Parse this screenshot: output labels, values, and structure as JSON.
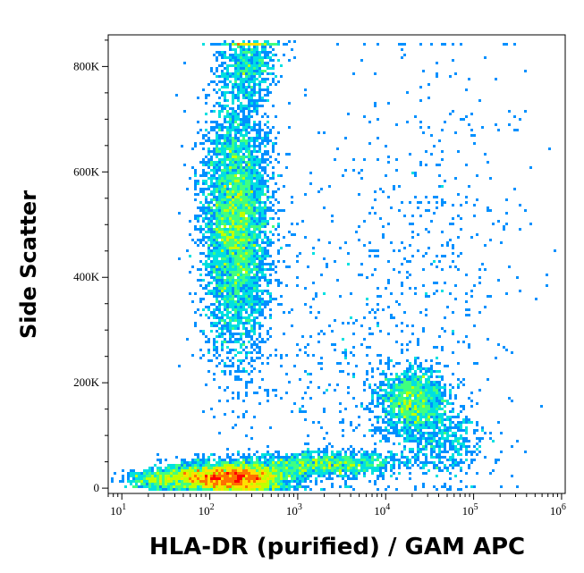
{
  "chart_data": {
    "type": "scatter",
    "subtype": "flow-cytometry-density-plot",
    "xlabel": "HLA-DR (purified) / GAM APC",
    "ylabel": "Side Scatter",
    "x_scale": "log",
    "x_ticks": [
      {
        "value": 10,
        "base": "10",
        "exp": "1"
      },
      {
        "value": 100,
        "base": "10",
        "exp": "2"
      },
      {
        "value": 1000,
        "base": "10",
        "exp": "3"
      },
      {
        "value": 10000,
        "base": "10",
        "exp": "4"
      },
      {
        "value": 100000,
        "base": "10",
        "exp": "5"
      },
      {
        "value": 1000000,
        "base": "10",
        "exp": "6"
      }
    ],
    "y_scale": "linear",
    "y_ticks": [
      {
        "value": 0,
        "label": "0"
      },
      {
        "value": 200000,
        "label": "200K"
      },
      {
        "value": 400000,
        "label": "400K"
      },
      {
        "value": 600000,
        "label": "600K"
      },
      {
        "value": 800000,
        "label": "800K"
      }
    ],
    "xlim": [
      7,
      1100000
    ],
    "ylim": [
      -10000,
      860000
    ],
    "grid": false,
    "colormap": [
      "#0000ff",
      "#0090ff",
      "#00e0e0",
      "#40ff80",
      "#c0ff00",
      "#ffe000",
      "#ff7000",
      "#ff0000"
    ],
    "populations": [
      {
        "x": 200,
        "y": 500000,
        "sdx": 0.19,
        "sdy": 120000,
        "n": 5200
      },
      {
        "x": 280,
        "y": 810000,
        "sdx": 0.16,
        "sdy": 40000,
        "n": 700
      },
      {
        "x": 20000,
        "y": 165000,
        "sdx": 0.2,
        "sdy": 30000,
        "n": 1500
      },
      {
        "x": 45000,
        "y": 90000,
        "sdx": 0.25,
        "sdy": 35000,
        "n": 500
      },
      {
        "x": 200,
        "y": 20000,
        "sdx": 0.3,
        "sdy": 14000,
        "n": 3800
      },
      {
        "x": 60,
        "y": 20000,
        "sdx": 0.25,
        "sdy": 12000,
        "n": 1000
      },
      {
        "x": 2000,
        "y": 45000,
        "sdx": 0.45,
        "sdy": 12000,
        "n": 1300
      },
      {
        "x": 22,
        "y": 15000,
        "sdx": 0.15,
        "sdy": 10000,
        "n": 300
      },
      {
        "x": 30000,
        "y": 420000,
        "sdx": 0.55,
        "sdy": 230000,
        "n": 500
      },
      {
        "x": 2000,
        "y": 250000,
        "sdx": 0.6,
        "sdy": 180000,
        "n": 350
      }
    ]
  }
}
